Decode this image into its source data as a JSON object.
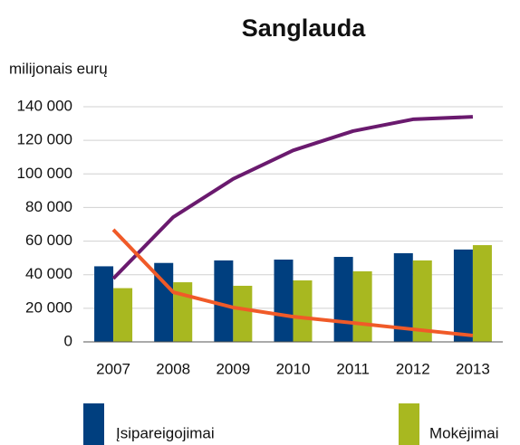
{
  "chart_data": {
    "type": "bar",
    "title": "Sanglauda",
    "ylabel": "milijonais eurų",
    "categories": [
      "2007",
      "2008",
      "2009",
      "2010",
      "2011",
      "2012",
      "2013"
    ],
    "series": [
      {
        "name": "Įsipareigojimai",
        "color": "#003f7f",
        "values": [
          45000,
          47000,
          48500,
          49000,
          50600,
          52800,
          55000
        ]
      },
      {
        "name": "Mokėjimai",
        "color": "#a8b820",
        "values": [
          32000,
          35500,
          33400,
          36600,
          42000,
          48500,
          57600
        ]
      }
    ],
    "lines": [
      {
        "color": "#6a1a6e",
        "values": [
          37700,
          74300,
          97000,
          114000,
          125500,
          132500,
          134000
        ]
      },
      {
        "color": "#f05a28",
        "values": [
          66800,
          29600,
          20500,
          15000,
          11300,
          7500,
          3800
        ]
      }
    ],
    "ylim": [
      0,
      140000
    ],
    "yticks": [
      0,
      {
        "value": 20000,
        "label": "20 000"
      },
      {
        "value": 40000,
        "label": "40 000"
      },
      {
        "value": 60000,
        "label": "60 000"
      },
      {
        "value": 80000,
        "label": "80 000"
      },
      {
        "value": 100000,
        "label": "100 000"
      },
      {
        "value": 120000,
        "label": "120 000"
      },
      {
        "value": 140000,
        "label": "140 000"
      }
    ],
    "grid": true
  }
}
